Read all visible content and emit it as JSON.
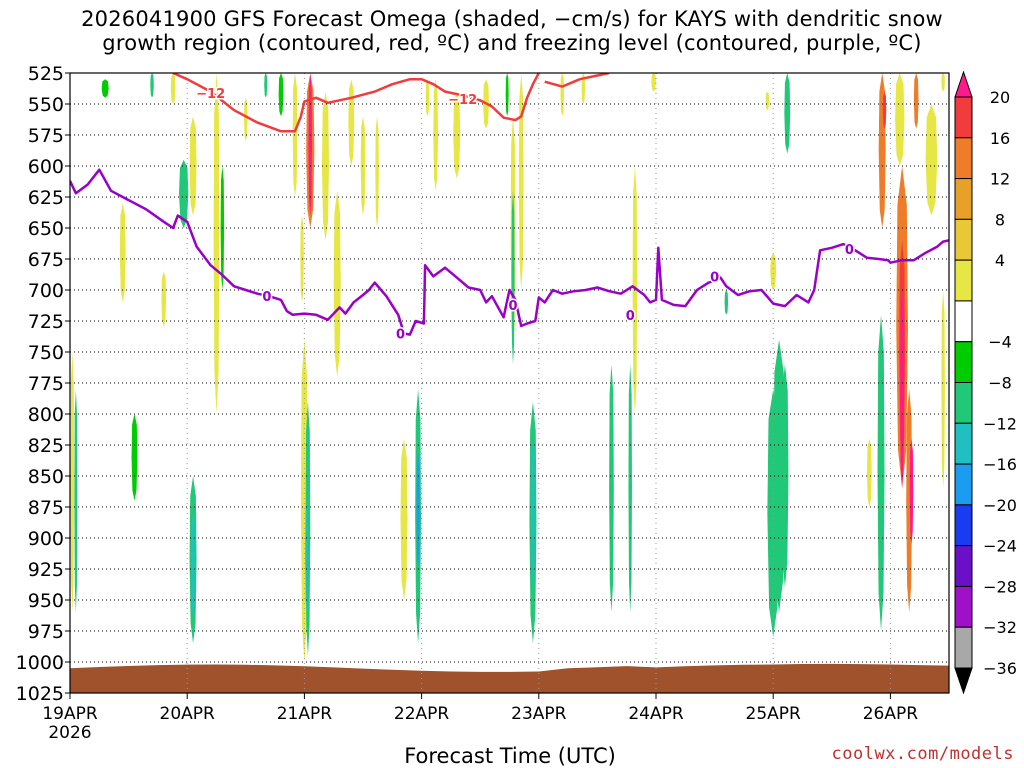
{
  "title_lines": [
    "2026041900 GFS Forecast Omega (shaded, −cm/s) for KAYS with dendritic snow",
    "growth region (contoured, red, ºC) and freezing level (contoured, purple, ºC)"
  ],
  "credit": "coolwx.com/models",
  "chart_data": {
    "type": "heatmap",
    "title": "2026041900 GFS Forecast Omega (shaded, −cm/s) for KAYS with dendritic snow growth region (contoured, red, ºC) and freezing level (contoured, purple, ºC)",
    "xlabel": "Forecast Time (UTC)",
    "ylabel": "",
    "x_range_days": [
      0,
      7.5
    ],
    "x_ticks": [
      {
        "day": 0,
        "label": "19APR",
        "sublabel": "2026"
      },
      {
        "day": 1,
        "label": "20APR"
      },
      {
        "day": 2,
        "label": "21APR"
      },
      {
        "day": 3,
        "label": "22APR"
      },
      {
        "day": 4,
        "label": "23APR"
      },
      {
        "day": 5,
        "label": "24APR"
      },
      {
        "day": 6,
        "label": "25APR"
      },
      {
        "day": 7,
        "label": "26APR"
      }
    ],
    "y_range_hpa": [
      525,
      1025
    ],
    "y_scale": "linear, inverted (pressure)",
    "y_ticks": [
      525,
      550,
      575,
      600,
      625,
      650,
      675,
      700,
      725,
      750,
      775,
      800,
      825,
      850,
      875,
      900,
      925,
      950,
      975,
      1000,
      1025
    ],
    "grid": "dotted horizontal, dotted vertical at each day",
    "colorbar": {
      "placement": "right",
      "labels": [
        "20",
        "16",
        "12",
        "8",
        "4",
        "−4",
        "−8",
        "−12",
        "−16",
        "−20",
        "−24",
        "−28",
        "−32",
        "−36"
      ],
      "colors_top_to_bottom": [
        "#ff1a8c",
        "#f03c3c",
        "#ef7c28",
        "#e8a028",
        "#e8c837",
        "#e6e645",
        "#ffffff",
        "#00cc00",
        "#20c878",
        "#20c0c0",
        "#1a9cf0",
        "#1a3cf0",
        "#6a10c8",
        "#a010c8",
        "#a8a8a8",
        "#000000"
      ]
    },
    "omega_shading_blobs": [
      {
        "day": 0.02,
        "p_top": 750,
        "p_bot": 960,
        "w": 0.03,
        "value": 6
      },
      {
        "day": 0.05,
        "p_top": 780,
        "p_bot": 960,
        "w": 0.02,
        "value": -8
      },
      {
        "day": 0.3,
        "p_top": 530,
        "p_bot": 545,
        "w": 0.06,
        "value": -6
      },
      {
        "day": 0.45,
        "p_top": 630,
        "p_bot": 710,
        "w": 0.05,
        "value": 6
      },
      {
        "day": 0.55,
        "p_top": 800,
        "p_bot": 870,
        "w": 0.05,
        "value": -6
      },
      {
        "day": 0.7,
        "p_top": 525,
        "p_bot": 545,
        "w": 0.03,
        "value": -8
      },
      {
        "day": 0.8,
        "p_top": 685,
        "p_bot": 730,
        "w": 0.04,
        "value": 6
      },
      {
        "day": 0.88,
        "p_top": 525,
        "p_bot": 550,
        "w": 0.04,
        "value": 6
      },
      {
        "day": 0.97,
        "p_top": 595,
        "p_bot": 650,
        "w": 0.08,
        "value": -8
      },
      {
        "day": 1.05,
        "p_top": 560,
        "p_bot": 640,
        "w": 0.06,
        "value": 6
      },
      {
        "day": 1.05,
        "p_top": 850,
        "p_bot": 985,
        "w": 0.06,
        "value": -8
      },
      {
        "day": 1.05,
        "p_top": 880,
        "p_bot": 965,
        "w": 0.03,
        "value": -12
      },
      {
        "day": 1.25,
        "p_top": 525,
        "p_bot": 800,
        "w": 0.05,
        "value": 6
      },
      {
        "day": 1.3,
        "p_top": 600,
        "p_bot": 700,
        "w": 0.03,
        "value": -6
      },
      {
        "day": 1.5,
        "p_top": 545,
        "p_bot": 580,
        "w": 0.03,
        "value": 6
      },
      {
        "day": 1.67,
        "p_top": 525,
        "p_bot": 545,
        "w": 0.02,
        "value": -8
      },
      {
        "day": 1.8,
        "p_top": 525,
        "p_bot": 560,
        "w": 0.04,
        "value": -6
      },
      {
        "day": 1.92,
        "p_top": 525,
        "p_bot": 625,
        "w": 0.04,
        "value": 6
      },
      {
        "day": 1.98,
        "p_top": 640,
        "p_bot": 710,
        "w": 0.03,
        "value": 6
      },
      {
        "day": 2.0,
        "p_top": 740,
        "p_bot": 1000,
        "w": 0.06,
        "value": 6
      },
      {
        "day": 2.03,
        "p_top": 790,
        "p_bot": 995,
        "w": 0.04,
        "value": -8
      },
      {
        "day": 2.02,
        "p_top": 870,
        "p_bot": 960,
        "w": 0.025,
        "value": -12
      },
      {
        "day": 2.05,
        "p_top": 525,
        "p_bot": 650,
        "w": 0.07,
        "value": 10
      },
      {
        "day": 2.05,
        "p_top": 525,
        "p_bot": 640,
        "w": 0.03,
        "value": 20
      },
      {
        "day": 2.18,
        "p_top": 540,
        "p_bot": 660,
        "w": 0.06,
        "value": 6
      },
      {
        "day": 2.28,
        "p_top": 620,
        "p_bot": 770,
        "w": 0.06,
        "value": 6
      },
      {
        "day": 2.4,
        "p_top": 530,
        "p_bot": 600,
        "w": 0.05,
        "value": 6
      },
      {
        "day": 2.5,
        "p_top": 560,
        "p_bot": 640,
        "w": 0.04,
        "value": 6
      },
      {
        "day": 2.62,
        "p_top": 560,
        "p_bot": 650,
        "w": 0.03,
        "value": 6
      },
      {
        "day": 2.85,
        "p_top": 820,
        "p_bot": 950,
        "w": 0.06,
        "value": 6
      },
      {
        "day": 2.97,
        "p_top": 780,
        "p_bot": 985,
        "w": 0.05,
        "value": -8
      },
      {
        "day": 2.97,
        "p_top": 830,
        "p_bot": 925,
        "w": 0.025,
        "value": -16
      },
      {
        "day": 3.05,
        "p_top": 530,
        "p_bot": 560,
        "w": 0.03,
        "value": 6
      },
      {
        "day": 3.12,
        "p_top": 530,
        "p_bot": 620,
        "w": 0.04,
        "value": 6
      },
      {
        "day": 3.3,
        "p_top": 540,
        "p_bot": 610,
        "w": 0.06,
        "value": 6
      },
      {
        "day": 3.55,
        "p_top": 530,
        "p_bot": 570,
        "w": 0.05,
        "value": 6
      },
      {
        "day": 3.73,
        "p_top": 525,
        "p_bot": 560,
        "w": 0.02,
        "value": -6
      },
      {
        "day": 3.78,
        "p_top": 560,
        "p_bot": 750,
        "w": 0.04,
        "value": 6
      },
      {
        "day": 3.78,
        "p_top": 620,
        "p_bot": 760,
        "w": 0.025,
        "value": -10
      },
      {
        "day": 3.85,
        "p_top": 525,
        "p_bot": 700,
        "w": 0.04,
        "value": 6
      },
      {
        "day": 3.95,
        "p_top": 790,
        "p_bot": 985,
        "w": 0.06,
        "value": -8
      },
      {
        "day": 3.95,
        "p_top": 820,
        "p_bot": 940,
        "w": 0.03,
        "value": -12
      },
      {
        "day": 4.2,
        "p_top": 525,
        "p_bot": 560,
        "w": 0.03,
        "value": 6
      },
      {
        "day": 4.38,
        "p_top": 525,
        "p_bot": 550,
        "w": 0.03,
        "value": 6
      },
      {
        "day": 4.62,
        "p_top": 760,
        "p_bot": 960,
        "w": 0.04,
        "value": -8
      },
      {
        "day": 4.78,
        "p_top": 760,
        "p_bot": 960,
        "w": 0.03,
        "value": -8
      },
      {
        "day": 4.82,
        "p_top": 600,
        "p_bot": 800,
        "w": 0.04,
        "value": 6
      },
      {
        "day": 4.98,
        "p_top": 525,
        "p_bot": 540,
        "w": 0.04,
        "value": 6
      },
      {
        "day": 5.6,
        "p_top": 700,
        "p_bot": 720,
        "w": 0.03,
        "value": -8
      },
      {
        "day": 5.95,
        "p_top": 540,
        "p_bot": 555,
        "w": 0.03,
        "value": 6
      },
      {
        "day": 6.0,
        "p_top": 670,
        "p_bot": 700,
        "w": 0.05,
        "value": 6
      },
      {
        "day": 6.0,
        "p_top": 780,
        "p_bot": 980,
        "w": 0.1,
        "value": -8
      },
      {
        "day": 6.0,
        "p_top": 800,
        "p_bot": 950,
        "w": 0.06,
        "value": -10
      },
      {
        "day": 6.05,
        "p_top": 740,
        "p_bot": 960,
        "w": 0.1,
        "value": -8
      },
      {
        "day": 6.12,
        "p_top": 525,
        "p_bot": 590,
        "w": 0.05,
        "value": -8
      },
      {
        "day": 6.1,
        "p_top": 760,
        "p_bot": 940,
        "w": 0.06,
        "value": -10
      },
      {
        "day": 6.82,
        "p_top": 820,
        "p_bot": 875,
        "w": 0.04,
        "value": 6
      },
      {
        "day": 6.92,
        "p_top": 720,
        "p_bot": 975,
        "w": 0.06,
        "value": -8
      },
      {
        "day": 6.92,
        "p_top": 760,
        "p_bot": 950,
        "w": 0.03,
        "value": -10
      },
      {
        "day": 6.93,
        "p_top": 525,
        "p_bot": 650,
        "w": 0.06,
        "value": 10
      },
      {
        "day": 6.95,
        "p_top": 540,
        "p_bot": 570,
        "w": 0.03,
        "value": 14
      },
      {
        "day": 7.08,
        "p_top": 525,
        "p_bot": 600,
        "w": 0.08,
        "value": 6
      },
      {
        "day": 7.1,
        "p_top": 600,
        "p_bot": 860,
        "w": 0.1,
        "value": 10
      },
      {
        "day": 7.1,
        "p_top": 660,
        "p_bot": 840,
        "w": 0.05,
        "value": 14
      },
      {
        "day": 7.1,
        "p_top": 700,
        "p_bot": 860,
        "w": 0.035,
        "value": 18
      },
      {
        "day": 7.16,
        "p_top": 780,
        "p_bot": 960,
        "w": 0.05,
        "value": 10
      },
      {
        "day": 7.18,
        "p_top": 820,
        "p_bot": 905,
        "w": 0.03,
        "value": 20
      },
      {
        "day": 7.22,
        "p_top": 525,
        "p_bot": 570,
        "w": 0.04,
        "value": 10
      },
      {
        "day": 7.35,
        "p_top": 550,
        "p_bot": 640,
        "w": 0.1,
        "value": 6
      },
      {
        "day": 7.45,
        "p_top": 525,
        "p_bot": 540,
        "w": 0.03,
        "value": 6
      },
      {
        "day": 7.45,
        "p_top": 700,
        "p_bot": 860,
        "w": 0.03,
        "value": 6
      }
    ],
    "snow_growth_contour": {
      "label": "−12",
      "color": "#f03c3c",
      "segments": [
        [
          [
            0.88,
            525
          ],
          [
            1.0,
            530
          ],
          [
            1.2,
            540
          ],
          [
            1.4,
            555
          ],
          [
            1.6,
            565
          ],
          [
            1.8,
            572
          ],
          [
            1.92,
            572
          ],
          [
            1.97,
            560
          ],
          [
            2.0,
            548
          ],
          [
            2.1,
            545
          ],
          [
            2.2,
            549
          ],
          [
            2.3,
            547
          ],
          [
            2.4,
            545
          ],
          [
            2.6,
            540
          ],
          [
            2.75,
            534
          ],
          [
            2.9,
            530
          ],
          [
            3.0,
            530
          ],
          [
            3.1,
            534
          ],
          [
            3.2,
            540
          ],
          [
            3.35,
            543
          ],
          [
            3.5,
            547
          ],
          [
            3.6,
            552
          ],
          [
            3.7,
            561
          ],
          [
            3.8,
            563
          ],
          [
            3.85,
            560
          ],
          [
            3.9,
            545
          ],
          [
            3.95,
            534
          ],
          [
            4.0,
            525
          ]
        ],
        [
          [
            4.05,
            532
          ],
          [
            4.2,
            536
          ],
          [
            4.35,
            530
          ],
          [
            4.5,
            527
          ],
          [
            4.6,
            525
          ]
        ]
      ],
      "labels": [
        {
          "day": 1.2,
          "p": 541
        },
        {
          "day": 3.35,
          "p": 546
        }
      ]
    },
    "freezing_level_contour": {
      "label": "0",
      "color": "#9a00c8",
      "segments": [
        [
          [
            0.0,
            612
          ],
          [
            0.05,
            622
          ],
          [
            0.15,
            615
          ],
          [
            0.25,
            603
          ],
          [
            0.35,
            620
          ],
          [
            0.45,
            625
          ],
          [
            0.55,
            630
          ],
          [
            0.65,
            635
          ],
          [
            0.8,
            645
          ],
          [
            0.88,
            650
          ],
          [
            0.92,
            640
          ],
          [
            1.0,
            645
          ],
          [
            1.08,
            665
          ],
          [
            1.2,
            680
          ],
          [
            1.3,
            688
          ],
          [
            1.4,
            697
          ],
          [
            1.5,
            700
          ],
          [
            1.6,
            703
          ],
          [
            1.7,
            705
          ],
          [
            1.8,
            708
          ],
          [
            1.85,
            717
          ],
          [
            1.9,
            720
          ],
          [
            2.0,
            719
          ],
          [
            2.1,
            720
          ],
          [
            2.2,
            724
          ],
          [
            2.3,
            714
          ],
          [
            2.35,
            719
          ],
          [
            2.42,
            710
          ],
          [
            2.5,
            704
          ],
          [
            2.55,
            700
          ],
          [
            2.6,
            694
          ],
          [
            2.7,
            705
          ],
          [
            2.8,
            720
          ],
          [
            2.85,
            735
          ],
          [
            2.9,
            736
          ],
          [
            2.95,
            725
          ],
          [
            3.02,
            727
          ],
          [
            3.03,
            680
          ],
          [
            3.1,
            689
          ],
          [
            3.2,
            682
          ],
          [
            3.3,
            690
          ],
          [
            3.4,
            698
          ],
          [
            3.5,
            700
          ],
          [
            3.55,
            710
          ],
          [
            3.6,
            705
          ],
          [
            3.7,
            722
          ],
          [
            3.75,
            700
          ],
          [
            3.8,
            708
          ],
          [
            3.85,
            729
          ],
          [
            3.9,
            727
          ],
          [
            3.97,
            725
          ],
          [
            4.0,
            706
          ],
          [
            4.05,
            710
          ],
          [
            4.12,
            700
          ],
          [
            4.2,
            703
          ],
          [
            4.3,
            701
          ],
          [
            4.4,
            700
          ],
          [
            4.5,
            698
          ],
          [
            4.6,
            701
          ],
          [
            4.7,
            703
          ],
          [
            4.8,
            697
          ],
          [
            4.9,
            704
          ],
          [
            4.95,
            710
          ],
          [
            5.0,
            708
          ],
          [
            5.02,
            666
          ],
          [
            5.05,
            708
          ],
          [
            5.15,
            712
          ],
          [
            5.25,
            713
          ],
          [
            5.35,
            700
          ],
          [
            5.45,
            694
          ],
          [
            5.55,
            690
          ],
          [
            5.6,
            697
          ],
          [
            5.7,
            704
          ],
          [
            5.8,
            701
          ],
          [
            5.9,
            700
          ],
          [
            6.0,
            711
          ],
          [
            6.1,
            713
          ],
          [
            6.2,
            704
          ],
          [
            6.3,
            710
          ],
          [
            6.35,
            700
          ],
          [
            6.4,
            668
          ],
          [
            6.5,
            666
          ],
          [
            6.6,
            663
          ],
          [
            6.7,
            668
          ],
          [
            6.8,
            674
          ],
          [
            6.9,
            675
          ],
          [
            6.98,
            676
          ],
          [
            7.0,
            678
          ],
          [
            7.1,
            676
          ],
          [
            7.2,
            676
          ],
          [
            7.3,
            670
          ],
          [
            7.4,
            665
          ],
          [
            7.45,
            661
          ],
          [
            7.5,
            660
          ]
        ]
      ],
      "labels": [
        {
          "day": 1.68,
          "p": 705
        },
        {
          "day": 2.82,
          "p": 735
        },
        {
          "day": 3.78,
          "p": 712
        },
        {
          "day": 4.78,
          "p": 720
        },
        {
          "day": 5.5,
          "p": 689
        },
        {
          "day": 6.65,
          "p": 667
        }
      ]
    }
  }
}
